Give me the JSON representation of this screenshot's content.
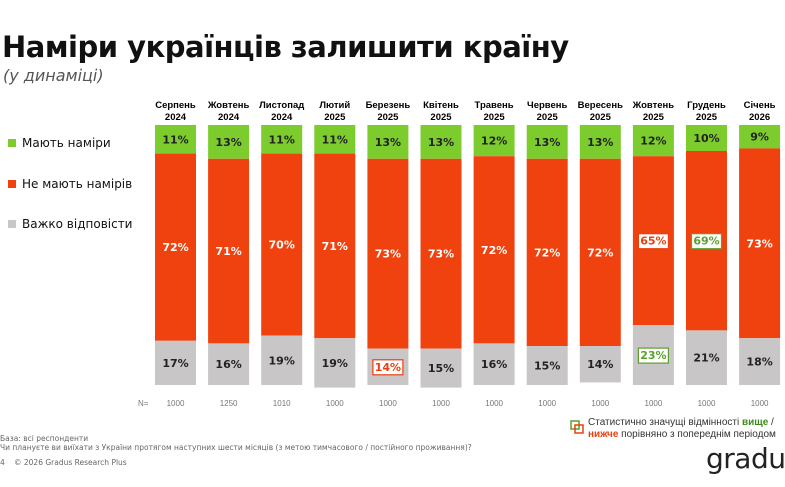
{
  "title": "Наміри українців залишити країну",
  "subtitle": "(у динаміці)",
  "colors": {
    "intend": "#7dcc2e",
    "not_intend": "#f0420f",
    "hard": "#c8c6c6",
    "higher": "#5aa02c",
    "lower": "#e8400f"
  },
  "chart_data": {
    "type": "bar",
    "stacked": true,
    "categories": [
      [
        "Серпень",
        "2024"
      ],
      [
        "Жовтень",
        "2024"
      ],
      [
        "Листопад",
        "2024"
      ],
      [
        "Лютий",
        "2025"
      ],
      [
        "Березень",
        "2025"
      ],
      [
        "Квітень",
        "2025"
      ],
      [
        "Травень",
        "2025"
      ],
      [
        "Червень",
        "2025"
      ],
      [
        "Вересень",
        "2025"
      ],
      [
        "Жовтень",
        "2025"
      ],
      [
        "Грудень",
        "2025"
      ],
      [
        "Січень",
        "2026"
      ]
    ],
    "series": [
      {
        "name": "Мають наміри",
        "values": [
          11,
          13,
          11,
          11,
          13,
          13,
          12,
          13,
          13,
          12,
          10,
          9
        ]
      },
      {
        "name": "Не мають намірів",
        "values": [
          72,
          71,
          70,
          71,
          73,
          73,
          72,
          72,
          72,
          65,
          69,
          73
        ]
      },
      {
        "name": "Важко відповісти",
        "values": [
          17,
          16,
          19,
          19,
          14,
          15,
          16,
          15,
          14,
          23,
          21,
          18
        ]
      }
    ],
    "significance": [
      {
        "category": "Березень 2025",
        "series": "Важко відповісти",
        "direction": "lower"
      },
      {
        "category": "Жовтень 2025",
        "series": "Не мають намірів",
        "direction": "lower"
      },
      {
        "category": "Жовтень 2025",
        "series": "Важко відповісти",
        "direction": "higher"
      },
      {
        "category": "Грудень 2025",
        "series": "Не мають намірів",
        "direction": "higher"
      }
    ],
    "n_label": "N=",
    "n_values": [
      1000,
      1250,
      1010,
      1000,
      1000,
      1000,
      1000,
      1000,
      1000,
      1000,
      1000,
      1000
    ],
    "ylim": [
      0,
      100
    ],
    "legend": "left"
  },
  "footer": {
    "base": "База: всі респонденти",
    "question": "Чи плануєте ви виїхати з України протягом наступних шести місяців (з метою тимчасового / постійного проживання)?",
    "page": "4",
    "copyright": "© 2026 Gradus Research Plus",
    "sig_line1_a": "Статистично значущі відмінності ",
    "sig_higher": "вище",
    "sig_line1_b": " /",
    "sig_lower": "нижче",
    "sig_line2_b": " порівняно з попереднім періодом",
    "logo": "gradus"
  }
}
